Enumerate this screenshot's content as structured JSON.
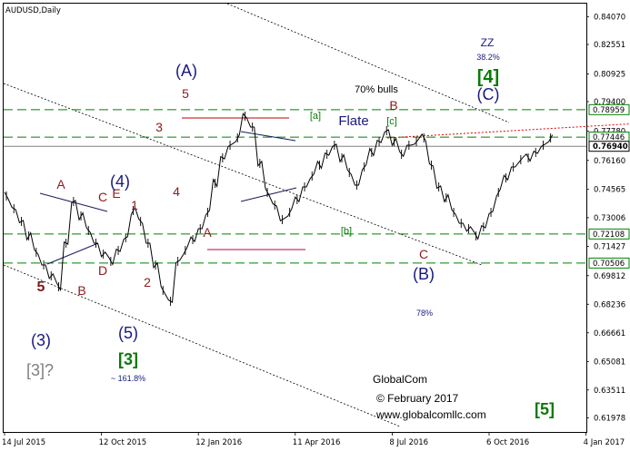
{
  "chart_data": {
    "type": "line",
    "title": "AUDUSD,Daily",
    "ylim": [
      0.612,
      0.848
    ],
    "price_ticks": [
      "0.84070",
      "0.82551",
      "0.80925",
      "0.79400",
      "0.77780",
      "0.76160",
      "0.74565",
      "0.73006",
      "0.71427",
      "0.69812",
      "0.68236",
      "0.66661",
      "0.65081",
      "0.63511",
      "0.61978"
    ],
    "levels": [
      {
        "value": 0.78959,
        "label": "0.78959",
        "color": "#008000"
      },
      {
        "value": 0.77446,
        "label": "0.77446",
        "color": "#008000"
      },
      {
        "value": 0.7694,
        "label": "0.76940",
        "color": "#808080"
      },
      {
        "value": 0.72108,
        "label": "0.72108",
        "color": "#008000"
      },
      {
        "value": 0.70506,
        "label": "0.70506",
        "color": "#008000"
      }
    ],
    "x_labels": [
      "14 Jul 2015",
      "12 Oct 2015",
      "12 Jan 2016",
      "11 Apr 2016",
      "8 Jul 2016",
      "6 Oct 2016",
      "4 Jan 2017"
    ],
    "x_label_index": [
      0,
      13,
      26,
      39,
      52,
      65,
      78
    ],
    "series": [
      {
        "values": [
          0.742,
          0.735,
          0.728,
          0.72,
          0.711,
          0.704,
          0.698,
          0.692,
          0.716,
          0.739,
          0.731,
          0.723,
          0.716,
          0.71,
          0.706,
          0.712,
          0.719,
          0.734,
          0.728,
          0.716,
          0.704,
          0.69,
          0.684,
          0.706,
          0.712,
          0.718,
          0.724,
          0.733,
          0.749,
          0.763,
          0.77,
          0.774,
          0.786,
          0.78,
          0.76,
          0.744,
          0.737,
          0.729,
          0.733,
          0.74,
          0.747,
          0.753,
          0.759,
          0.765,
          0.77,
          0.763,
          0.755,
          0.748,
          0.758,
          0.766,
          0.772,
          0.778,
          0.772,
          0.765,
          0.77,
          0.772,
          0.774,
          0.759,
          0.747,
          0.741,
          0.733,
          0.727,
          0.724,
          0.72,
          0.725,
          0.733,
          0.744,
          0.752,
          0.758,
          0.762,
          0.763,
          0.766,
          0.77,
          0.774
        ],
        "color": "#000000"
      }
    ],
    "forecast": [
      {
        "x": 85,
        "y": 0.782
      },
      {
        "x": 95,
        "y": 0.706
      },
      {
        "x": 111,
        "y": 0.789
      },
      {
        "x": 122,
        "y": 0.638
      }
    ],
    "annotations": [
      {
        "text": "5",
        "color": "#7a1a1a"
      },
      {
        "text": "(3)",
        "color": "#1a1a80"
      },
      {
        "text": "[3]?",
        "color": "#808080"
      },
      {
        "text": "A",
        "color": "#8b1a1a"
      },
      {
        "text": "B",
        "color": "#8b1a1a"
      },
      {
        "text": "C",
        "color": "#8b1a1a"
      },
      {
        "text": "D",
        "color": "#8b1a1a"
      },
      {
        "text": "E",
        "color": "#8b1a1a"
      },
      {
        "text": "(4)",
        "color": "#1a1a80"
      },
      {
        "text": "1",
        "color": "#8b1a1a"
      },
      {
        "text": "2",
        "color": "#8b1a1a"
      },
      {
        "text": "(5)",
        "color": "#1a1a80"
      },
      {
        "text": "[3]",
        "color": "#0a7a0a"
      },
      {
        "text": "~ 161.8%",
        "color": "#1a1a80"
      },
      {
        "text": "3",
        "color": "#8b1a1a"
      },
      {
        "text": "4",
        "color": "#8b1a1a"
      },
      {
        "text": "(A)",
        "color": "#1a1a80"
      },
      {
        "text": "5",
        "color": "#8b1a1a"
      },
      {
        "text": "A",
        "color": "#8b1a1a"
      },
      {
        "text": "[a]",
        "color": "#0a7a0a"
      },
      {
        "text": "Flate",
        "color": "#1a1a80"
      },
      {
        "text": "70% bulls",
        "color": "#000000"
      },
      {
        "text": "B",
        "color": "#8b1a1a"
      },
      {
        "text": "[c]",
        "color": "#0a7a0a"
      },
      {
        "text": "[b]",
        "color": "#0a7a0a"
      },
      {
        "text": "C",
        "color": "#8b1a1a"
      },
      {
        "text": "(B)",
        "color": "#1a1a80"
      },
      {
        "text": "78%",
        "color": "#1a1a80"
      },
      {
        "text": "ZZ",
        "color": "#1a1a80"
      },
      {
        "text": "38.2%",
        "color": "#1a1a80"
      },
      {
        "text": "[4]",
        "color": "#0a7a0a"
      },
      {
        "text": "(C)",
        "color": "#1a1a80"
      },
      {
        "text": "[5]",
        "color": "#0a7a0a"
      }
    ],
    "watermark": [
      "GlobalCom",
      "© February 2017",
      "www.globalcomllc.com"
    ]
  }
}
